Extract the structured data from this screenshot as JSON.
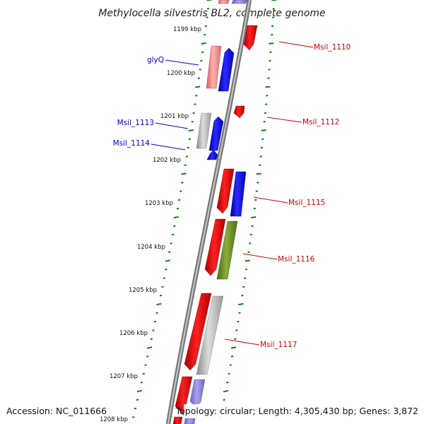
{
  "title": "Methylocella silvestris BL2, complete genome",
  "footer": {
    "accession": "Accession: NC_011666",
    "topology": "Topology: circular; Length: 4,305,430 bp; Genes: 3,872"
  },
  "colors": {
    "backbone": "#8c8c8c",
    "tick": "#1a7a1a",
    "label_blue": "#0000cc",
    "label_red": "#cc0000",
    "gene_red": "#ee1111",
    "gene_pink": "#f08a8a",
    "gene_blue": "#1010ee",
    "gene_gray": "#b8b8b8",
    "gene_olive": "#6b8e23",
    "gene_lavender": "#8a80dd"
  },
  "kbp_labels": [
    "1199 kbp",
    "1200 kbp",
    "1201 kbp",
    "1202 kbp",
    "1203 kbp",
    "1204 kbp",
    "1205 kbp",
    "1206 kbp",
    "1207 kbp",
    "1208 kbp"
  ],
  "left_labels": [
    "glyQ",
    "Msil_1113",
    "Msil_1114"
  ],
  "right_labels": [
    "Msil_1110",
    "Msil_1112",
    "Msil_1115",
    "Msil_1116",
    "Msil_1117"
  ]
}
